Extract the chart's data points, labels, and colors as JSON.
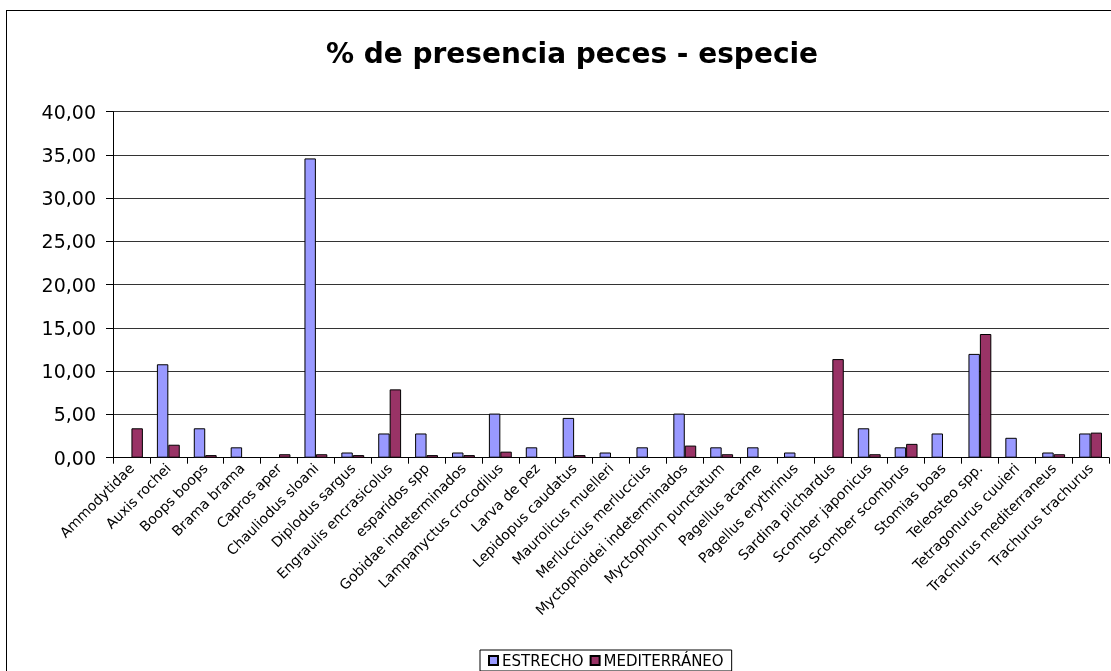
{
  "chart_data": {
    "type": "bar",
    "title": "% de presencia peces - especie",
    "categories": [
      "Ammodytidae",
      "Auxis rochei",
      "Boops boops",
      "Brama brama",
      "Capros aper",
      "Chauliodus sloani",
      "Diplodus sargus",
      "Engraulis encrasicolus",
      "esparidos spp",
      "Gobidae indeterminados",
      "Lampanyctus crocodilus",
      "Larva de pez",
      "Lepidopus caudatus",
      "Maurolicus muelleri",
      "Merluccius merluccius",
      "Myctophoidei indeterminados",
      "Myctophum punctatum",
      "Pagellus acarne",
      "Pagellus erythrinus",
      "Sardina pilchardus",
      "Scomber japonicus",
      "Scomber scombrus",
      "Stomias boas",
      "Teleosteo spp.",
      "Tetragonurus cuuieri",
      "Trachurus mediterraneus",
      "Trachurus trachurus"
    ],
    "series": [
      {
        "name": "ESTRECHO",
        "color": "#9999ff",
        "values": [
          null,
          10.8,
          3.4,
          1.2,
          null,
          34.6,
          0.6,
          2.8,
          2.8,
          0.6,
          5.1,
          1.2,
          4.6,
          0.6,
          1.2,
          5.1,
          1.2,
          1.2,
          0.6,
          null,
          3.4,
          1.2,
          2.8,
          12.0,
          2.3,
          0.6,
          2.8
        ]
      },
      {
        "name": "MEDITERRÁNEO",
        "color": "#993366",
        "values": [
          3.4,
          1.5,
          0.3,
          null,
          0.4,
          0.4,
          0.3,
          7.9,
          0.3,
          0.3,
          0.7,
          null,
          0.3,
          null,
          null,
          1.4,
          0.4,
          null,
          null,
          11.4,
          0.4,
          1.6,
          null,
          14.3,
          null,
          0.4,
          2.9
        ]
      }
    ],
    "ylim": [
      0,
      40
    ],
    "yticks": [
      {
        "value": 0,
        "label": "0,00"
      },
      {
        "value": 5,
        "label": "5,00"
      },
      {
        "value": 10,
        "label": "10,00"
      },
      {
        "value": 15,
        "label": "15,00"
      },
      {
        "value": 20,
        "label": "20,00"
      },
      {
        "value": 25,
        "label": "25,00"
      },
      {
        "value": 30,
        "label": "30,00"
      },
      {
        "value": 35,
        "label": "35,00"
      },
      {
        "value": 40,
        "label": "40,00"
      }
    ],
    "grid": "y",
    "legend": "bottom"
  }
}
